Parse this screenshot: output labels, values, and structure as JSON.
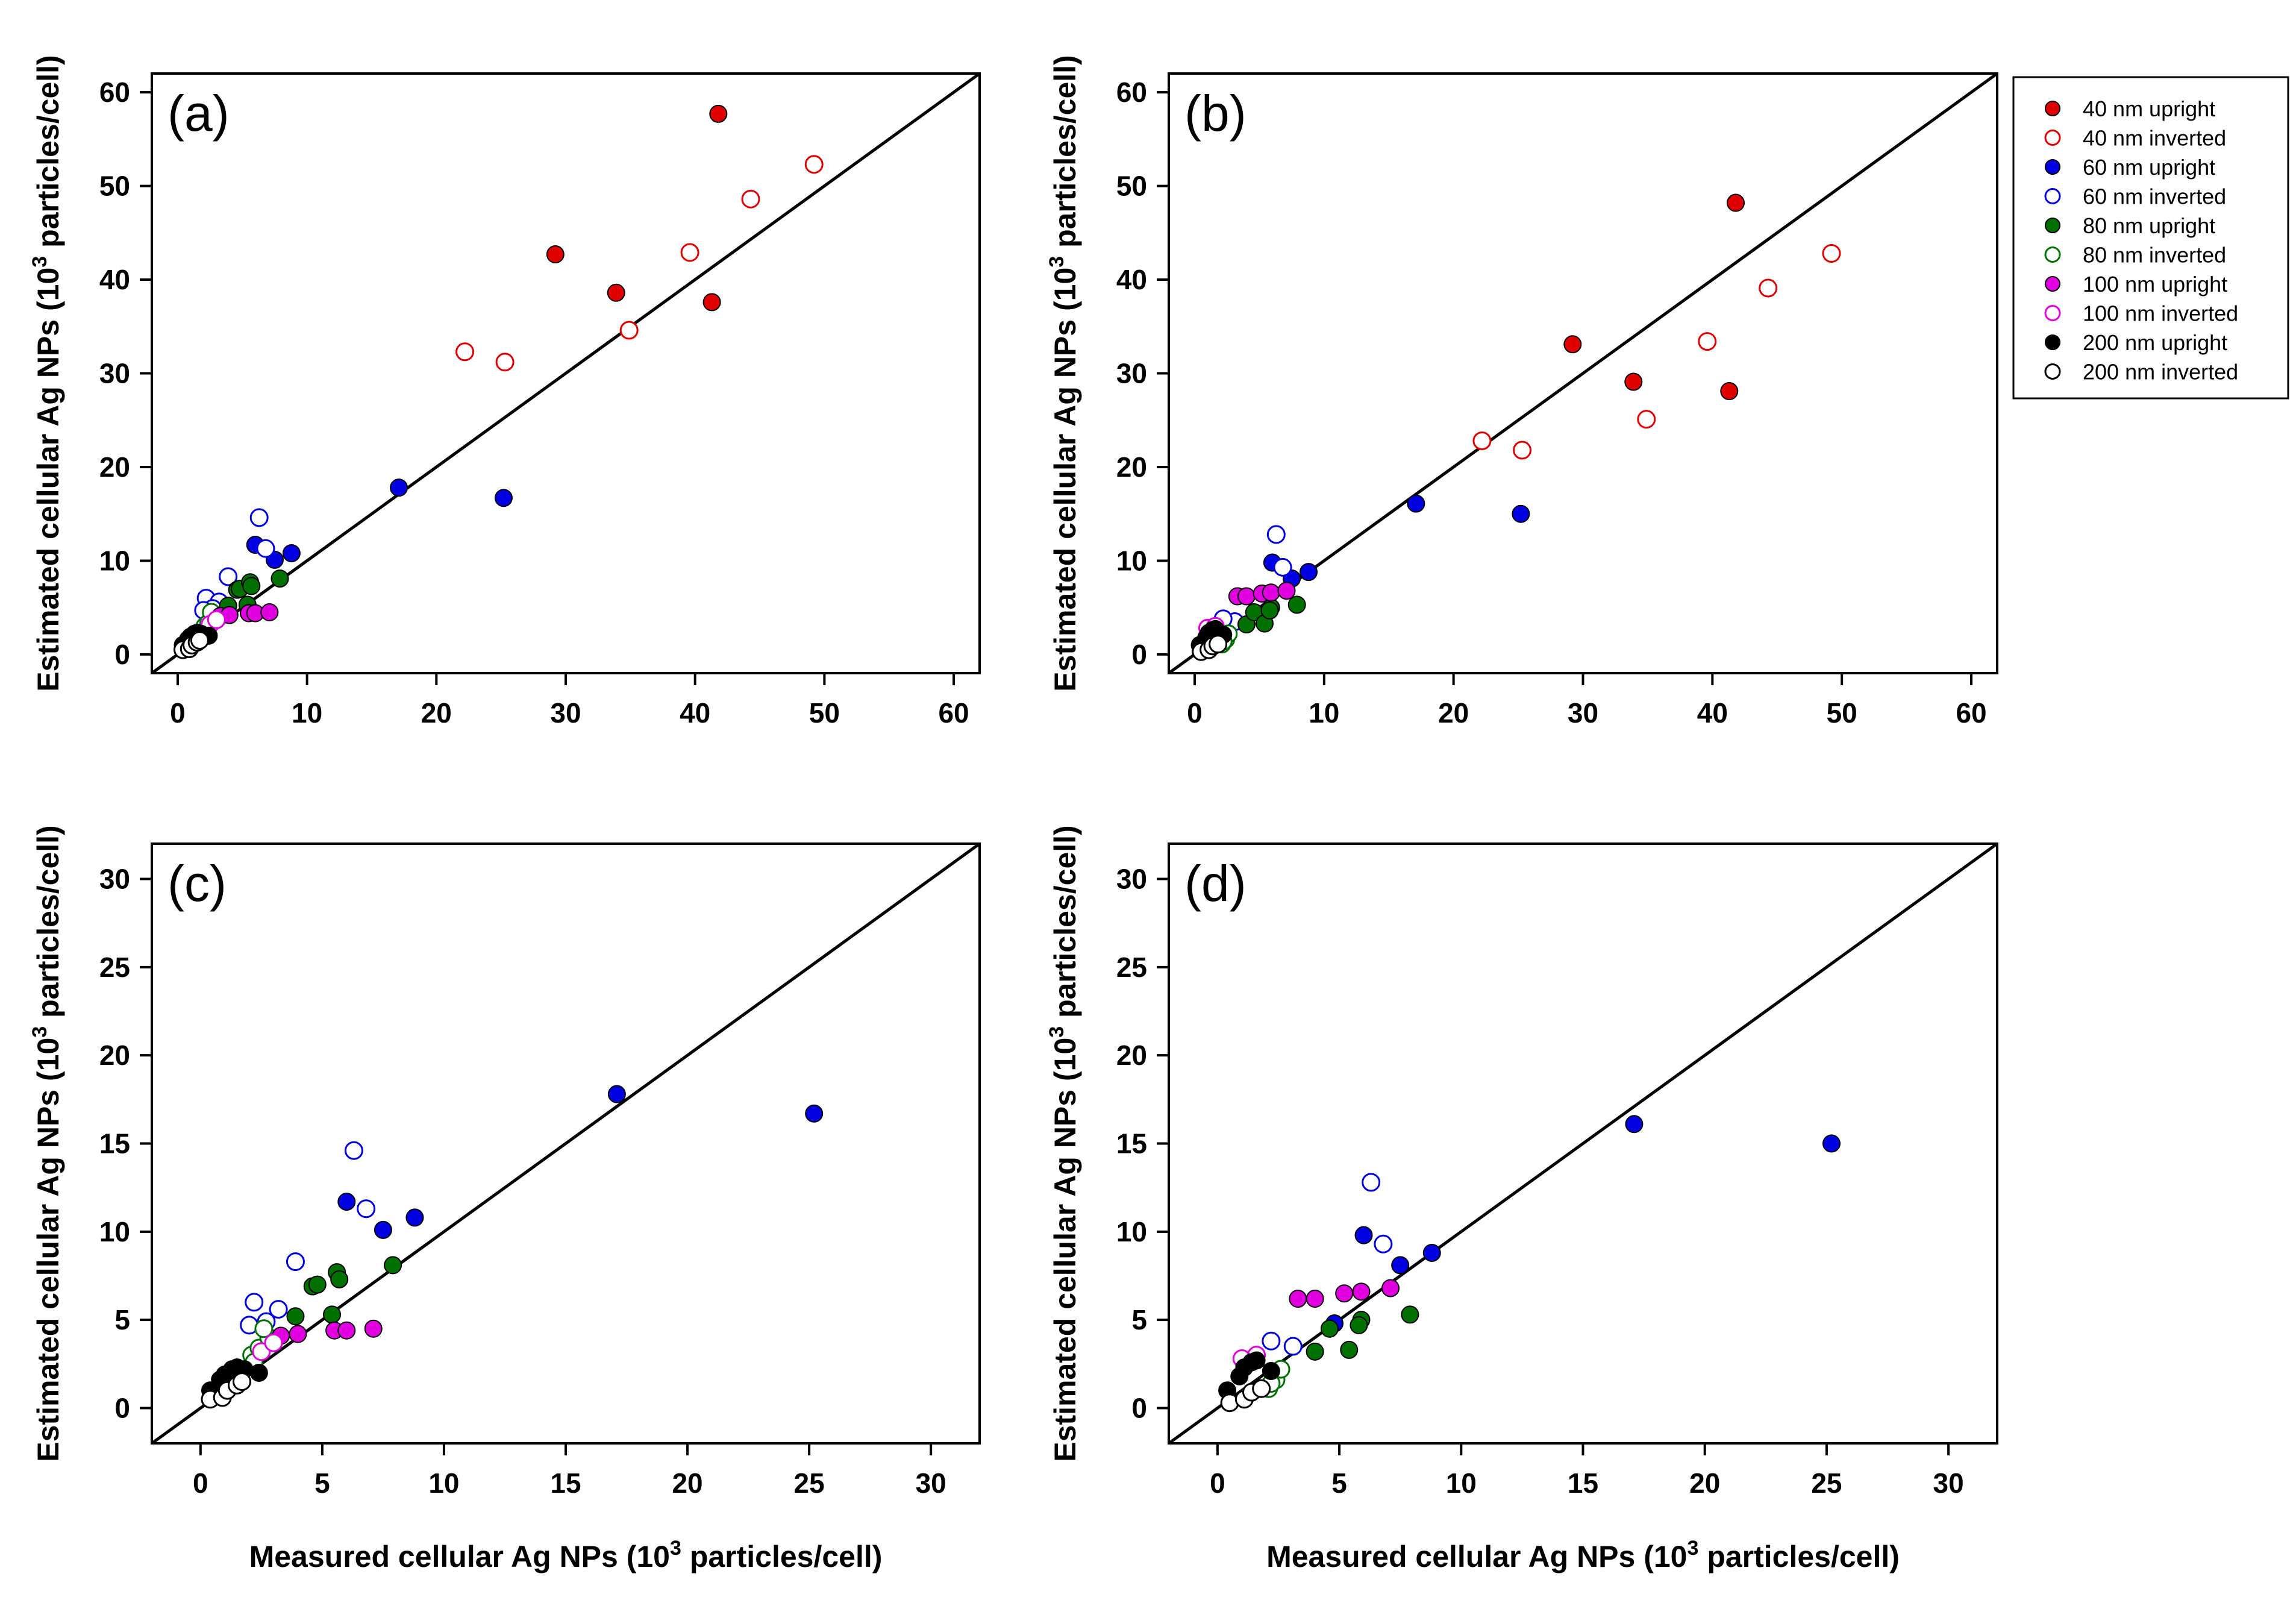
{
  "legend": {
    "items": [
      {
        "label": "40 nm upright",
        "color": "#e00000",
        "filled": true
      },
      {
        "label": "40 nm inverted",
        "color": "#e00000",
        "filled": false
      },
      {
        "label": "60 nm upright",
        "color": "#0000e0",
        "filled": true
      },
      {
        "label": "60 nm inverted",
        "color": "#0000e0",
        "filled": false
      },
      {
        "label": "80 nm upright",
        "color": "#007000",
        "filled": true
      },
      {
        "label": "80 nm inverted",
        "color": "#007000",
        "filled": false
      },
      {
        "label": "100 nm upright",
        "color": "#e000e0",
        "filled": true
      },
      {
        "label": "100 nm inverted",
        "color": "#e000e0",
        "filled": false
      },
      {
        "label": "200 nm upright",
        "color": "#000000",
        "filled": true
      },
      {
        "label": "200 nm inverted",
        "color": "#000000",
        "filled": false
      }
    ]
  },
  "axis_titles": {
    "x_main": "Measured cellular Ag NPs (10",
    "x_sup": "3",
    "x_tail": " particles/cell)",
    "y_main": "Estimated cellular Ag NPs (10",
    "y_sup": "3",
    "y_tail": " particles/cell)"
  },
  "chart_data": [
    {
      "type": "scatter",
      "panel": "(a)",
      "xlim": [
        -2,
        62
      ],
      "ylim": [
        -2,
        62
      ],
      "xticks": [
        0,
        10,
        20,
        30,
        40,
        50,
        60
      ],
      "yticks": [
        0,
        10,
        20,
        30,
        40,
        50,
        60
      ],
      "show_xlabel": false,
      "show_ylabel": true,
      "reference_line": "y = x",
      "series": [
        {
          "name": "40 nm upright",
          "x": [
            29.2,
            33.9,
            41.3,
            41.8
          ],
          "y": [
            42.7,
            38.6,
            37.6,
            57.7
          ]
        },
        {
          "name": "40 nm inverted",
          "x": [
            22.2,
            25.3,
            34.9,
            39.6,
            44.3,
            49.2
          ],
          "y": [
            32.3,
            31.2,
            34.6,
            42.9,
            48.6,
            52.3
          ]
        },
        {
          "name": "60 nm upright",
          "x": [
            17.1,
            25.2,
            6.0,
            7.5,
            8.8
          ],
          "y": [
            17.8,
            16.7,
            11.7,
            10.1,
            10.8
          ]
        },
        {
          "name": "60 nm inverted",
          "x": [
            6.3,
            6.8,
            3.9,
            2.2,
            3.2,
            2.7,
            2.0
          ],
          "y": [
            14.6,
            11.3,
            8.3,
            6.0,
            5.6,
            4.9,
            4.7
          ]
        },
        {
          "name": "80 nm upright",
          "x": [
            4.6,
            4.8,
            5.6,
            5.7,
            7.9,
            3.9,
            5.4
          ],
          "y": [
            6.9,
            7.0,
            7.7,
            7.3,
            8.1,
            5.2,
            5.3
          ]
        },
        {
          "name": "80 nm inverted",
          "x": [
            2.1,
            2.4,
            2.8,
            2.6,
            2.2
          ],
          "y": [
            3.0,
            3.4,
            4.0,
            4.5,
            2.6
          ]
        },
        {
          "name": "100 nm upright",
          "x": [
            3.3,
            4.0,
            5.5,
            6.0,
            7.1
          ],
          "y": [
            4.1,
            4.2,
            4.4,
            4.4,
            4.5
          ]
        },
        {
          "name": "100 nm inverted",
          "x": [
            2.5,
            3.0
          ],
          "y": [
            3.2,
            3.7
          ]
        },
        {
          "name": "200 nm upright",
          "x": [
            0.4,
            0.8,
            1.0,
            1.3,
            1.5,
            1.8,
            2.4
          ],
          "y": [
            1.0,
            1.6,
            1.9,
            2.2,
            2.3,
            2.2,
            2.0
          ]
        },
        {
          "name": "200 nm inverted",
          "x": [
            0.4,
            0.9,
            1.1,
            1.5,
            1.7
          ],
          "y": [
            0.5,
            0.6,
            1.0,
            1.3,
            1.5
          ]
        }
      ]
    },
    {
      "type": "scatter",
      "panel": "(b)",
      "xlim": [
        -2,
        62
      ],
      "ylim": [
        -2,
        62
      ],
      "xticks": [
        0,
        10,
        20,
        30,
        40,
        50,
        60
      ],
      "yticks": [
        0,
        10,
        20,
        30,
        40,
        50,
        60
      ],
      "show_xlabel": false,
      "show_ylabel": true,
      "reference_line": "y = x",
      "series": [
        {
          "name": "40 nm upright",
          "x": [
            29.2,
            33.9,
            41.3,
            41.8
          ],
          "y": [
            33.1,
            29.1,
            28.1,
            48.2
          ]
        },
        {
          "name": "40 nm inverted",
          "x": [
            22.2,
            25.3,
            34.9,
            39.6,
            44.3,
            49.2
          ],
          "y": [
            22.8,
            21.8,
            25.1,
            33.4,
            39.1,
            42.8
          ]
        },
        {
          "name": "60 nm upright",
          "x": [
            17.1,
            25.2,
            6.0,
            7.5,
            8.8
          ],
          "y": [
            16.1,
            15.0,
            9.8,
            8.1,
            8.8
          ]
        },
        {
          "name": "60 nm inverted",
          "x": [
            6.3,
            6.8,
            3.1,
            2.2
          ],
          "y": [
            12.8,
            9.3,
            3.5,
            3.8
          ]
        },
        {
          "name": "80 nm upright",
          "x": [
            4.0,
            4.6,
            5.4,
            5.9,
            7.9,
            5.8
          ],
          "y": [
            3.2,
            4.5,
            3.3,
            5.0,
            5.3,
            4.7
          ]
        },
        {
          "name": "80 nm inverted",
          "x": [
            2.1,
            2.4,
            2.6,
            2.2
          ],
          "y": [
            1.1,
            1.6,
            2.2,
            1.4
          ]
        },
        {
          "name": "100 nm upright",
          "x": [
            3.3,
            4.0,
            5.2,
            5.9,
            7.1
          ],
          "y": [
            6.2,
            6.2,
            6.5,
            6.6,
            6.8
          ]
        },
        {
          "name": "100 nm inverted",
          "x": [
            1.0,
            1.6
          ],
          "y": [
            2.8,
            3.0
          ]
        },
        {
          "name": "200 nm upright",
          "x": [
            0.4,
            0.9,
            1.1,
            1.4,
            1.6,
            2.2
          ],
          "y": [
            1.0,
            1.8,
            2.3,
            2.6,
            2.7,
            2.1
          ]
        },
        {
          "name": "200 nm inverted",
          "x": [
            0.5,
            1.1,
            1.4,
            1.8
          ],
          "y": [
            0.3,
            0.5,
            0.9,
            1.1
          ]
        }
      ]
    },
    {
      "type": "scatter",
      "panel": "(c)",
      "xlim": [
        -2,
        32
      ],
      "ylim": [
        -2,
        32
      ],
      "xticks": [
        0,
        5,
        10,
        15,
        20,
        25,
        30
      ],
      "yticks": [
        0,
        5,
        10,
        15,
        20,
        25,
        30
      ],
      "show_xlabel": true,
      "show_ylabel": true,
      "reference_line": "y = x",
      "series": [
        {
          "name": "60 nm upright",
          "x": [
            17.1,
            25.2,
            6.0,
            7.5,
            8.8
          ],
          "y": [
            17.8,
            16.7,
            11.7,
            10.1,
            10.8
          ]
        },
        {
          "name": "60 nm inverted",
          "x": [
            6.3,
            6.8,
            3.9,
            2.2,
            3.2,
            2.7,
            2.0
          ],
          "y": [
            14.6,
            11.3,
            8.3,
            6.0,
            5.6,
            4.9,
            4.7
          ]
        },
        {
          "name": "80 nm upright",
          "x": [
            4.6,
            4.8,
            5.6,
            5.7,
            7.9,
            3.9,
            5.4
          ],
          "y": [
            6.9,
            7.0,
            7.7,
            7.3,
            8.1,
            5.2,
            5.3
          ]
        },
        {
          "name": "80 nm inverted",
          "x": [
            2.1,
            2.4,
            2.8,
            2.6,
            2.2
          ],
          "y": [
            3.0,
            3.4,
            4.0,
            4.5,
            2.6
          ]
        },
        {
          "name": "100 nm upright",
          "x": [
            3.3,
            4.0,
            5.5,
            6.0,
            7.1
          ],
          "y": [
            4.1,
            4.2,
            4.4,
            4.4,
            4.5
          ]
        },
        {
          "name": "100 nm inverted",
          "x": [
            2.5,
            3.0
          ],
          "y": [
            3.2,
            3.7
          ]
        },
        {
          "name": "200 nm upright",
          "x": [
            0.4,
            0.8,
            1.0,
            1.3,
            1.5,
            1.8,
            2.4
          ],
          "y": [
            1.0,
            1.6,
            1.9,
            2.2,
            2.3,
            2.2,
            2.0
          ]
        },
        {
          "name": "200 nm inverted",
          "x": [
            0.4,
            0.9,
            1.1,
            1.5,
            1.7
          ],
          "y": [
            0.5,
            0.6,
            1.0,
            1.3,
            1.5
          ]
        }
      ]
    },
    {
      "type": "scatter",
      "panel": "(d)",
      "xlim": [
        -2,
        32
      ],
      "ylim": [
        -2,
        32
      ],
      "xticks": [
        0,
        5,
        10,
        15,
        20,
        25,
        30
      ],
      "yticks": [
        0,
        5,
        10,
        15,
        20,
        25,
        30
      ],
      "show_xlabel": true,
      "show_ylabel": true,
      "reference_line": "y = x",
      "series": [
        {
          "name": "60 nm upright",
          "x": [
            17.1,
            25.2,
            6.0,
            7.5,
            8.8,
            4.8
          ],
          "y": [
            16.1,
            15.0,
            9.8,
            8.1,
            8.8,
            4.8
          ]
        },
        {
          "name": "60 nm inverted",
          "x": [
            6.3,
            6.8,
            3.1,
            2.2
          ],
          "y": [
            12.8,
            9.3,
            3.5,
            3.8
          ]
        },
        {
          "name": "80 nm upright",
          "x": [
            4.0,
            4.6,
            5.4,
            5.9,
            7.9,
            5.8
          ],
          "y": [
            3.2,
            4.5,
            3.3,
            5.0,
            5.3,
            4.7
          ]
        },
        {
          "name": "80 nm inverted",
          "x": [
            2.1,
            2.4,
            2.6,
            2.2
          ],
          "y": [
            1.1,
            1.6,
            2.2,
            1.4
          ]
        },
        {
          "name": "100 nm upright",
          "x": [
            3.3,
            4.0,
            5.2,
            5.9,
            7.1
          ],
          "y": [
            6.2,
            6.2,
            6.5,
            6.6,
            6.8
          ]
        },
        {
          "name": "100 nm inverted",
          "x": [
            1.0,
            1.6
          ],
          "y": [
            2.8,
            3.0
          ]
        },
        {
          "name": "200 nm upright",
          "x": [
            0.4,
            0.9,
            1.1,
            1.4,
            1.6,
            2.2
          ],
          "y": [
            1.0,
            1.8,
            2.3,
            2.6,
            2.7,
            2.1
          ]
        },
        {
          "name": "200 nm inverted",
          "x": [
            0.5,
            1.1,
            1.4,
            1.8
          ],
          "y": [
            0.3,
            0.5,
            0.9,
            1.1
          ]
        }
      ]
    }
  ]
}
